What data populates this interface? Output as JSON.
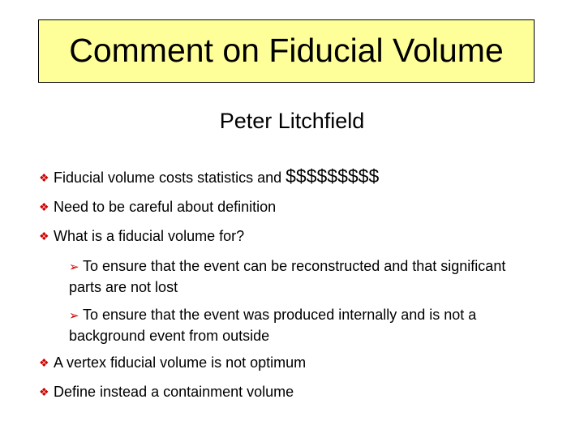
{
  "title": "Comment on Fiducial Volume",
  "author": "Peter Litchfield",
  "markers": {
    "bullet_glyph": "❖",
    "subbullet_glyph": "➢",
    "accent_color": "#cc0000",
    "title_bg": "#ffff99"
  },
  "bullets": [
    {
      "text": "Fiducial volume costs statistics and ",
      "emphasis": "$$$$$$$$$"
    },
    {
      "text": "Need to be careful about definition"
    },
    {
      "text": "What is a fiducial volume for?"
    }
  ],
  "subbullets": [
    {
      "text": "To ensure that the event can be reconstructed and that significant parts are not lost"
    },
    {
      "text": "To ensure that the event was produced internally and is not a background event from outside"
    }
  ],
  "trailing_bullets": [
    {
      "text": "A vertex fiducial volume is not optimum"
    },
    {
      "text": "Define instead a containment volume"
    }
  ]
}
